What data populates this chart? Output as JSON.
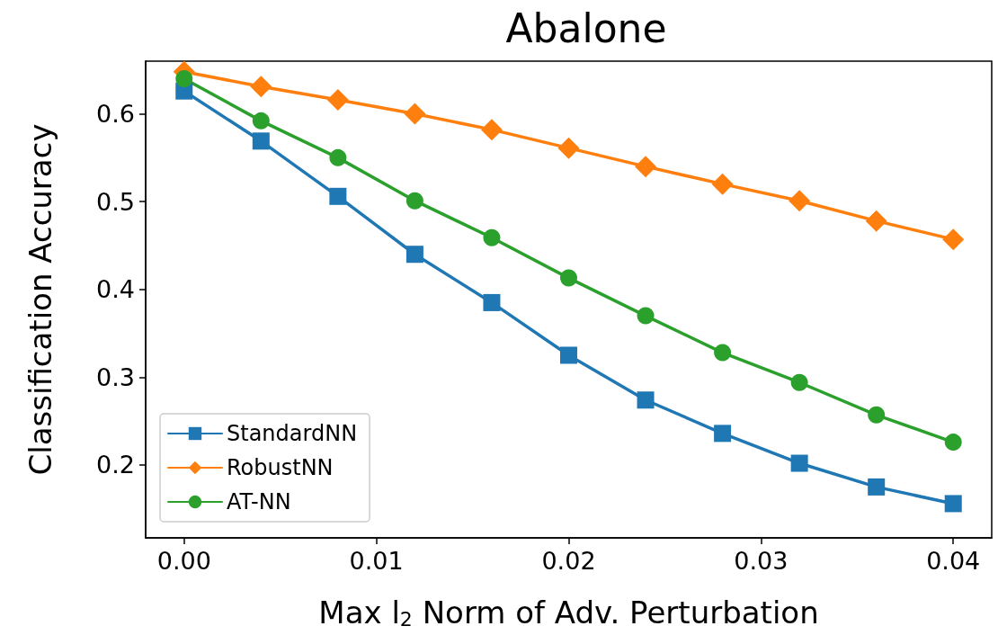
{
  "chart_data": {
    "type": "line",
    "title": "Abalone",
    "xlabel": "Max l$_{2}$ Norm of Adv. Perturbation",
    "ylabel": "Classification Accuracy",
    "x": [
      0,
      0.004,
      0.008,
      0.012,
      0.016,
      0.02,
      0.024,
      0.028,
      0.032,
      0.036,
      0.04
    ],
    "series": [
      {
        "name": "StandardNN",
        "color": "#1f77b4",
        "marker": "square",
        "values": [
          0.626,
          0.569,
          0.506,
          0.44,
          0.385,
          0.325,
          0.274,
          0.236,
          0.202,
          0.175,
          0.156
        ]
      },
      {
        "name": "RobustNN",
        "color": "#ff7f0e",
        "marker": "diamond",
        "values": [
          0.648,
          0.631,
          0.616,
          0.6,
          0.582,
          0.561,
          0.54,
          0.52,
          0.501,
          0.478,
          0.457
        ]
      },
      {
        "name": "AT-NN",
        "color": "#2ca02c",
        "marker": "circle",
        "values": [
          0.64,
          0.592,
          0.55,
          0.501,
          0.459,
          0.413,
          0.37,
          0.328,
          0.294,
          0.257,
          0.226
        ]
      }
    ],
    "xlim": [
      -0.002,
      0.042
    ],
    "xticks": [
      {
        "value": 0,
        "label": "0.00"
      },
      {
        "value": 0.01,
        "label": "0.01"
      },
      {
        "value": 0.02,
        "label": "0.02"
      },
      {
        "value": 0.03,
        "label": "0.03"
      },
      {
        "value": 0.04,
        "label": "0.04"
      }
    ],
    "ylim": [
      0.117,
      0.66
    ],
    "yticks": [
      0.2,
      0.3,
      0.4,
      0.5,
      0.6
    ],
    "grid": false,
    "legend": "bottom left",
    "line_style": "solid"
  }
}
